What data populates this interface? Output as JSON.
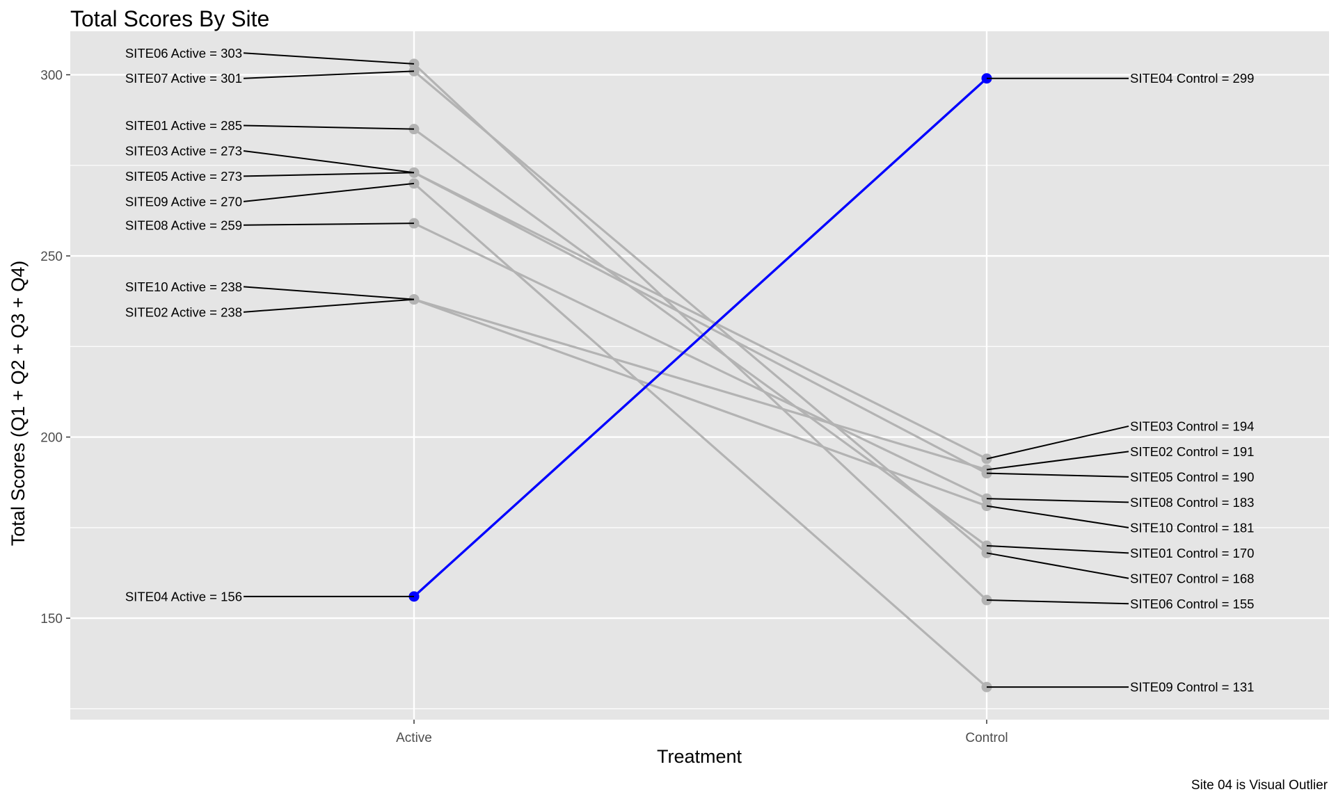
{
  "chart_data": {
    "type": "line",
    "title": "Total Scores By Site",
    "xlabel": "Treatment",
    "ylabel": "Total Scores (Q1 + Q2 + Q3 + Q4)",
    "caption": "Site 04 is Visual Outlier",
    "categories": [
      "Active",
      "Control"
    ],
    "ylim": [
      122,
      312
    ],
    "yticks": [
      150,
      200,
      250,
      300
    ],
    "grid": true,
    "legend": "none",
    "colors": {
      "panel": "#e5e5e5",
      "grid": "#ffffff",
      "series": "#b3b3b3",
      "highlight": "#0000ff",
      "label_line": "#000000"
    },
    "series": [
      {
        "name": "SITE01",
        "values": [
          285,
          170
        ],
        "highlight": false
      },
      {
        "name": "SITE02",
        "values": [
          238,
          191
        ],
        "highlight": false
      },
      {
        "name": "SITE03",
        "values": [
          273,
          194
        ],
        "highlight": false
      },
      {
        "name": "SITE04",
        "values": [
          156,
          299
        ],
        "highlight": true
      },
      {
        "name": "SITE05",
        "values": [
          273,
          190
        ],
        "highlight": false
      },
      {
        "name": "SITE06",
        "values": [
          303,
          155
        ],
        "highlight": false
      },
      {
        "name": "SITE07",
        "values": [
          301,
          168
        ],
        "highlight": false
      },
      {
        "name": "SITE08",
        "values": [
          259,
          183
        ],
        "highlight": false
      },
      {
        "name": "SITE09",
        "values": [
          270,
          131
        ],
        "highlight": false
      },
      {
        "name": "SITE10",
        "values": [
          238,
          181
        ],
        "highlight": false
      }
    ],
    "labels_active": [
      {
        "site": "SITE06",
        "text": "SITE06 Active = 303",
        "value": 303,
        "label_y": 306
      },
      {
        "site": "SITE07",
        "text": "SITE07 Active = 301",
        "value": 301,
        "label_y": 299
      },
      {
        "site": "SITE01",
        "text": "SITE01 Active = 285",
        "value": 285,
        "label_y": 286
      },
      {
        "site": "SITE03",
        "text": "SITE03 Active = 273",
        "value": 273,
        "label_y": 279
      },
      {
        "site": "SITE05",
        "text": "SITE05 Active = 273",
        "value": 273,
        "label_y": 272
      },
      {
        "site": "SITE09",
        "text": "SITE09 Active = 270",
        "value": 270,
        "label_y": 265
      },
      {
        "site": "SITE08",
        "text": "SITE08 Active = 259",
        "value": 259,
        "label_y": 258.5
      },
      {
        "site": "SITE10",
        "text": "SITE10 Active = 238",
        "value": 238,
        "label_y": 241.5
      },
      {
        "site": "SITE02",
        "text": "SITE02 Active = 238",
        "value": 238,
        "label_y": 234.5
      },
      {
        "site": "SITE04",
        "text": "SITE04 Active = 156",
        "value": 156,
        "label_y": 156
      }
    ],
    "labels_control": [
      {
        "site": "SITE04",
        "text": "SITE04 Control = 299",
        "value": 299,
        "label_y": 299
      },
      {
        "site": "SITE03",
        "text": "SITE03 Control = 194",
        "value": 194,
        "label_y": 203
      },
      {
        "site": "SITE02",
        "text": "SITE02 Control = 191",
        "value": 191,
        "label_y": 196
      },
      {
        "site": "SITE05",
        "text": "SITE05 Control = 190",
        "value": 190,
        "label_y": 189
      },
      {
        "site": "SITE08",
        "text": "SITE08 Control = 183",
        "value": 183,
        "label_y": 182
      },
      {
        "site": "SITE10",
        "text": "SITE10 Control = 181",
        "value": 181,
        "label_y": 175
      },
      {
        "site": "SITE01",
        "text": "SITE01 Control = 170",
        "value": 170,
        "label_y": 168
      },
      {
        "site": "SITE07",
        "text": "SITE07 Control = 168",
        "value": 168,
        "label_y": 161
      },
      {
        "site": "SITE06",
        "text": "SITE06 Control = 155",
        "value": 155,
        "label_y": 154
      },
      {
        "site": "SITE09",
        "text": "SITE09 Control = 131",
        "value": 131,
        "label_y": 131
      }
    ]
  }
}
